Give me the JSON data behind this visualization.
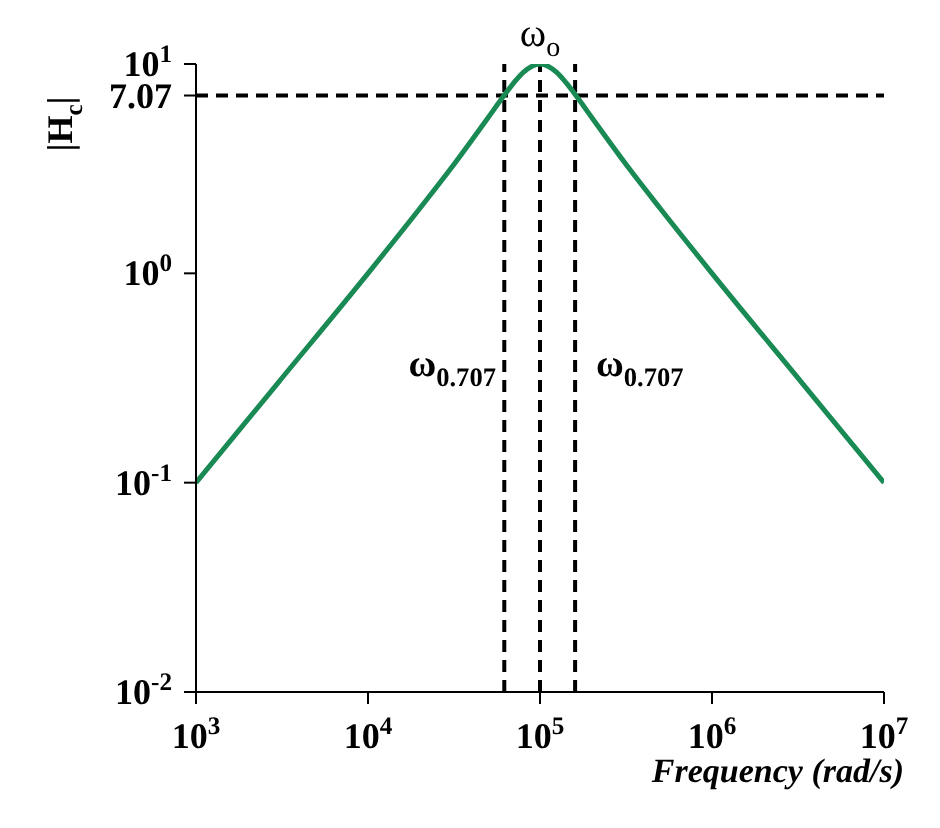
{
  "chart_data": {
    "type": "line",
    "xlabel": "Frequency (rad/s)",
    "ylabel": "|H$_{c}$|",
    "log": "xy",
    "x": [
      1000,
      3000,
      10000,
      20000,
      30000,
      50000,
      60000,
      70000,
      80000,
      100000,
      125000,
      142860,
      166700,
      200000,
      333300,
      500000,
      1000000,
      3333000,
      10000000
    ],
    "series": [
      {
        "color": "#1a8a55",
        "values": [
          0.1,
          0.3,
          1.0,
          2.04,
          3.13,
          5.55,
          6.84,
          8.08,
          9.12,
          10,
          9.12,
          8.08,
          6.84,
          5.55,
          3.13,
          2.04,
          1.0,
          0.3,
          0.1
        ]
      }
    ],
    "xlim": [
      1000,
      10000000
    ],
    "xticks": [
      {
        "value": 1000,
        "label": "10$^{3}$"
      },
      {
        "value": 10000,
        "label": "10$^{4}$"
      },
      {
        "value": 100000,
        "label": "10$^{5}$"
      },
      {
        "value": 1000000,
        "label": "10$^{6}$"
      },
      {
        "value": 10000000,
        "label": "10$^{7}$"
      }
    ],
    "ylim": [
      0.01,
      10
    ],
    "yticks": [
      {
        "value": 0.01,
        "label": "10$^{-2}$"
      },
      {
        "value": 0.1,
        "label": "10$^{-1}$"
      },
      {
        "value": 1,
        "label": "10$^{0}$"
      },
      {
        "value": 7.07,
        "label": "7.07"
      },
      {
        "value": 10,
        "label": "10$^{1}$"
      }
    ],
    "ref_lines": [
      {
        "axis": "y",
        "value": 7.07,
        "line_style": "dashed",
        "color": "#000000"
      },
      {
        "axis": "x",
        "value": 62000,
        "line_style": "dashed",
        "color": "#000000"
      },
      {
        "axis": "x",
        "value": 100000,
        "line_style": "dashed",
        "color": "#000000",
        "label": "ω$_{o}$"
      },
      {
        "axis": "x",
        "value": 160000,
        "line_style": "dashed",
        "color": "#000000"
      }
    ],
    "annotations": [
      "ω$_{0.707}$",
      "ω$_{0.707}$"
    ],
    "grid": false
  }
}
